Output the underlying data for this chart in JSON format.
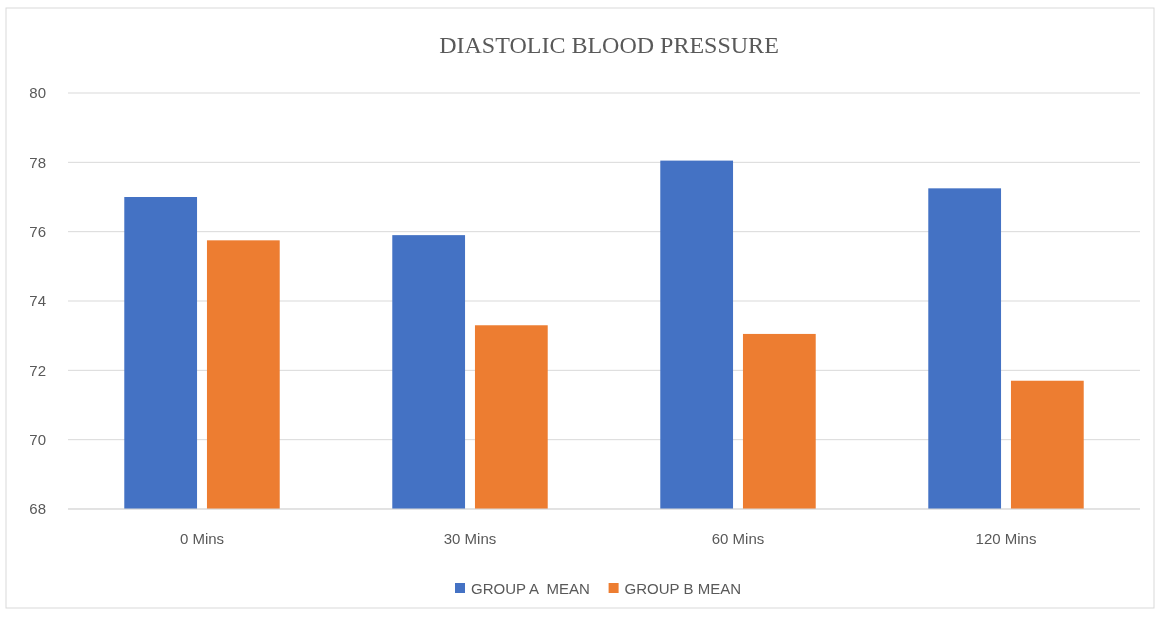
{
  "chart_data": {
    "type": "bar",
    "title": "DIASTOLIC BLOOD PRESSURE",
    "categories": [
      "0 Mins",
      "30 Mins",
      "60 Mins",
      "120 Mins"
    ],
    "series": [
      {
        "name": "GROUP A  MEAN",
        "color": "#4472c4",
        "values": [
          77.0,
          75.9,
          78.05,
          77.25
        ]
      },
      {
        "name": "GROUP B MEAN",
        "color": "#ed7d31",
        "values": [
          75.75,
          73.3,
          73.05,
          71.7
        ]
      }
    ],
    "ylim": [
      68,
      80
    ],
    "yticks": [
      68,
      70,
      72,
      74,
      76,
      78,
      80
    ],
    "grid": "y",
    "legend": "bottom"
  }
}
